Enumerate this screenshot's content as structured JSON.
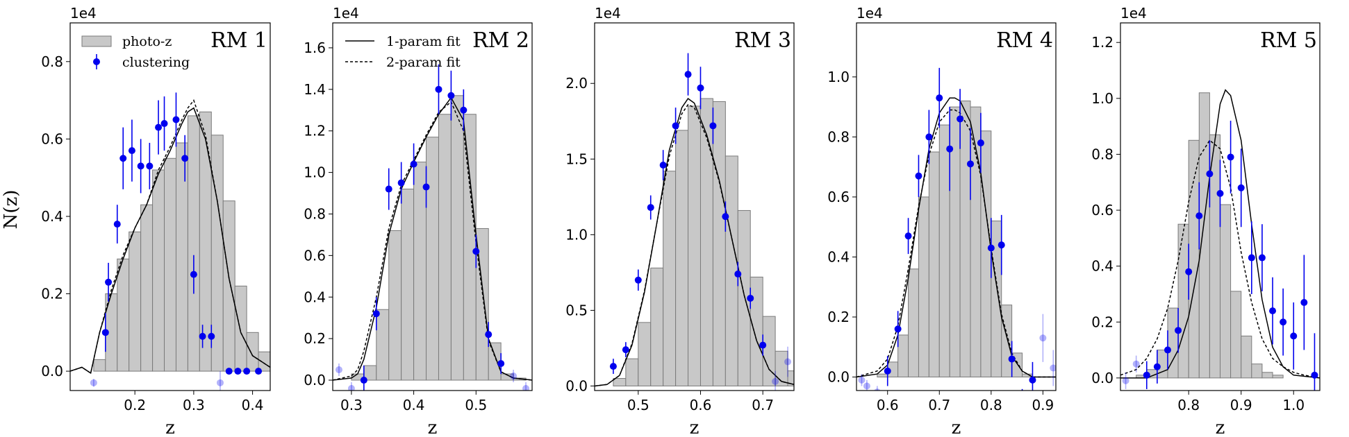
{
  "figure": {
    "ylabel": "N(z)",
    "offset_text": "1e4",
    "legend_left": {
      "photoz": "photo-z",
      "clustering": "clustering"
    },
    "legend_right": {
      "fit1": "1-param fit",
      "fit2": "2-param fit"
    }
  },
  "colors": {
    "bar_fill": "#c8c8c8",
    "bar_edge": "#7a7a7a",
    "points": "#0000ee",
    "line": "#000000"
  },
  "chart_data": [
    {
      "type": "bar",
      "title": "RM 1",
      "xlabel": "z",
      "xlim": [
        0.09,
        0.43
      ],
      "ylim": [
        -0.05,
        0.9
      ],
      "xticks": [
        "0.2",
        "0.3",
        "0.4"
      ],
      "yticks": [
        "0.0",
        "0.2",
        "0.4",
        "0.6",
        "0.8"
      ],
      "bins": {
        "start": 0.13,
        "width": 0.02,
        "heights": [
          0.03,
          0.2,
          0.29,
          0.36,
          0.43,
          0.52,
          0.55,
          0.59,
          0.66,
          0.67,
          0.61,
          0.44,
          0.22,
          0.1,
          0.05,
          0.02
        ]
      },
      "clustering": {
        "x": [
          0.13,
          0.15,
          0.155,
          0.17,
          0.18,
          0.195,
          0.21,
          0.225,
          0.24,
          0.25,
          0.27,
          0.285,
          0.3,
          0.315,
          0.33,
          0.345,
          0.36,
          0.375,
          0.39,
          0.41
        ],
        "y": [
          -0.03,
          0.1,
          0.23,
          0.38,
          0.55,
          0.57,
          0.53,
          0.53,
          0.63,
          0.64,
          0.65,
          0.55,
          0.25,
          0.09,
          0.09,
          -0.03,
          0.0,
          0.0,
          0.0,
          0.0
        ],
        "err": [
          0.01,
          0.05,
          0.05,
          0.05,
          0.08,
          0.08,
          0.07,
          0.06,
          0.07,
          0.07,
          0.07,
          0.06,
          0.05,
          0.03,
          0.03,
          0.03,
          0,
          0,
          0,
          0
        ],
        "faded": [
          true,
          false,
          false,
          false,
          false,
          false,
          false,
          false,
          false,
          false,
          false,
          false,
          false,
          false,
          false,
          true,
          false,
          false,
          false,
          false
        ]
      },
      "fit_1param": {
        "x": [
          0.09,
          0.11,
          0.125,
          0.14,
          0.16,
          0.18,
          0.2,
          0.22,
          0.24,
          0.26,
          0.28,
          0.29,
          0.3,
          0.32,
          0.34,
          0.36,
          0.38,
          0.4,
          0.43
        ],
        "y": [
          0.0,
          0.01,
          -0.005,
          0.1,
          0.2,
          0.29,
          0.37,
          0.43,
          0.51,
          0.57,
          0.64,
          0.67,
          0.68,
          0.6,
          0.44,
          0.24,
          0.1,
          0.04,
          0.01
        ]
      },
      "fit_2param": {
        "x": [
          0.09,
          0.11,
          0.125,
          0.14,
          0.16,
          0.18,
          0.2,
          0.22,
          0.24,
          0.26,
          0.28,
          0.29,
          0.3,
          0.32,
          0.34,
          0.36,
          0.38,
          0.4,
          0.43
        ],
        "y": [
          0.0,
          0.01,
          -0.005,
          0.1,
          0.21,
          0.3,
          0.37,
          0.43,
          0.52,
          0.58,
          0.65,
          0.68,
          0.7,
          0.61,
          0.44,
          0.24,
          0.1,
          0.04,
          0.01
        ]
      }
    },
    {
      "type": "bar",
      "title": "RM 2",
      "xlabel": "z",
      "xlim": [
        0.27,
        0.59
      ],
      "ylim": [
        -0.05,
        1.72
      ],
      "xticks": [
        "0.3",
        "0.4",
        "0.5"
      ],
      "yticks": [
        "0.0",
        "0.2",
        "0.4",
        "0.6",
        "0.8",
        "1.0",
        "1.2",
        "1.4",
        "1.6"
      ],
      "bins": {
        "start": 0.3,
        "width": 0.02,
        "heights": [
          0.03,
          0.07,
          0.34,
          0.72,
          0.92,
          1.05,
          1.17,
          1.28,
          1.37,
          1.28,
          0.73,
          0.18,
          0.03,
          0.01
        ]
      },
      "clustering": {
        "x": [
          0.28,
          0.3,
          0.32,
          0.34,
          0.36,
          0.38,
          0.4,
          0.42,
          0.44,
          0.46,
          0.48,
          0.5,
          0.52,
          0.54,
          0.56,
          0.58
        ],
        "y": [
          0.05,
          -0.04,
          0.0,
          0.32,
          0.92,
          0.95,
          1.04,
          0.93,
          1.4,
          1.37,
          1.3,
          0.62,
          0.22,
          0.08,
          0.02,
          -0.04
        ],
        "err": [
          0.03,
          0.03,
          0.07,
          0.08,
          0.1,
          0.1,
          0.1,
          0.1,
          0.12,
          0.12,
          0.1,
          0.08,
          0.06,
          0.05,
          0.03,
          0.03
        ],
        "faded": [
          true,
          true,
          false,
          false,
          false,
          false,
          false,
          false,
          false,
          false,
          false,
          false,
          false,
          false,
          true,
          true
        ]
      },
      "fit_1param": {
        "x": [
          0.27,
          0.3,
          0.31,
          0.32,
          0.34,
          0.36,
          0.38,
          0.4,
          0.42,
          0.44,
          0.46,
          0.48,
          0.5,
          0.52,
          0.54,
          0.56,
          0.59
        ],
        "y": [
          0.0,
          0.01,
          0.03,
          0.1,
          0.35,
          0.7,
          0.92,
          1.05,
          1.17,
          1.28,
          1.36,
          1.25,
          0.7,
          0.2,
          0.04,
          0.01,
          0.0
        ]
      },
      "fit_2param": {
        "x": [
          0.27,
          0.3,
          0.31,
          0.32,
          0.34,
          0.36,
          0.38,
          0.4,
          0.42,
          0.44,
          0.46,
          0.48,
          0.5,
          0.52,
          0.54,
          0.56,
          0.59
        ],
        "y": [
          0.0,
          0.02,
          0.05,
          0.14,
          0.4,
          0.73,
          0.94,
          1.06,
          1.18,
          1.29,
          1.34,
          1.2,
          0.66,
          0.19,
          0.04,
          0.01,
          0.0
        ]
      }
    },
    {
      "type": "bar",
      "title": "RM 3",
      "xlabel": "z",
      "xlim": [
        0.43,
        0.75
      ],
      "ylim": [
        -0.03,
        2.4
      ],
      "xticks": [
        "0.5",
        "0.6",
        "0.7"
      ],
      "yticks": [
        "0.0",
        "0.5",
        "1.0",
        "1.5",
        "2.0"
      ],
      "bins": {
        "start": 0.44,
        "width": 0.02,
        "heights": [
          0.0,
          0.05,
          0.18,
          0.42,
          0.78,
          1.42,
          1.69,
          1.85,
          1.9,
          1.88,
          1.52,
          1.16,
          0.72,
          0.46,
          0.23,
          0.1,
          0.04
        ]
      },
      "clustering": {
        "x": [
          0.46,
          0.48,
          0.5,
          0.52,
          0.54,
          0.56,
          0.58,
          0.6,
          0.62,
          0.64,
          0.66,
          0.68,
          0.7,
          0.72,
          0.74
        ],
        "y": [
          0.13,
          0.24,
          0.7,
          1.18,
          1.46,
          1.72,
          2.06,
          1.97,
          1.72,
          1.12,
          0.74,
          0.58,
          0.27,
          0.03,
          0.16
        ],
        "err": [
          0.05,
          0.05,
          0.07,
          0.08,
          0.1,
          0.12,
          0.14,
          0.14,
          0.12,
          0.1,
          0.08,
          0.07,
          0.07,
          0.07,
          0.1
        ],
        "faded": [
          false,
          false,
          false,
          false,
          false,
          false,
          false,
          false,
          false,
          false,
          false,
          false,
          false,
          true,
          true
        ]
      },
      "fit_1param": {
        "x": [
          0.43,
          0.45,
          0.47,
          0.49,
          0.51,
          0.53,
          0.55,
          0.57,
          0.58,
          0.59,
          0.61,
          0.63,
          0.65,
          0.67,
          0.69,
          0.71,
          0.73,
          0.75
        ],
        "y": [
          0.0,
          0.01,
          0.07,
          0.27,
          0.62,
          1.08,
          1.56,
          1.84,
          1.9,
          1.87,
          1.66,
          1.36,
          0.98,
          0.6,
          0.3,
          0.11,
          0.03,
          0.01
        ]
      },
      "fit_2param": {
        "x": [
          0.43,
          0.45,
          0.47,
          0.49,
          0.51,
          0.53,
          0.55,
          0.57,
          0.58,
          0.59,
          0.61,
          0.63,
          0.65,
          0.67,
          0.69,
          0.71,
          0.73,
          0.75
        ],
        "y": [
          0.0,
          0.01,
          0.07,
          0.28,
          0.63,
          1.08,
          1.52,
          1.8,
          1.86,
          1.84,
          1.64,
          1.35,
          0.98,
          0.6,
          0.3,
          0.11,
          0.03,
          0.01
        ]
      }
    },
    {
      "type": "bar",
      "title": "RM 4",
      "xlabel": "z",
      "xlim": [
        0.54,
        0.925
      ],
      "ylim": [
        -0.045,
        1.18
      ],
      "xticks": [
        "0.6",
        "0.7",
        "0.8",
        "0.9"
      ],
      "yticks": [
        "0.0",
        "0.2",
        "0.4",
        "0.6",
        "0.8",
        "1.0"
      ],
      "bins": {
        "start": 0.58,
        "width": 0.02,
        "heights": [
          0.01,
          0.05,
          0.14,
          0.36,
          0.6,
          0.75,
          0.84,
          0.9,
          0.92,
          0.9,
          0.82,
          0.52,
          0.24,
          0.08,
          0.01
        ]
      },
      "clustering": {
        "x": [
          0.55,
          0.56,
          0.58,
          0.6,
          0.62,
          0.64,
          0.66,
          0.68,
          0.7,
          0.72,
          0.74,
          0.76,
          0.78,
          0.8,
          0.82,
          0.84,
          0.86,
          0.88,
          0.9,
          0.92
        ],
        "y": [
          -0.01,
          -0.03,
          -0.05,
          0.02,
          0.16,
          0.47,
          0.67,
          0.8,
          0.93,
          0.76,
          0.86,
          0.71,
          0.78,
          0.43,
          0.44,
          0.06,
          -0.08,
          -0.01,
          0.13,
          0.03
        ],
        "err": [
          0.02,
          0.02,
          0.02,
          0.05,
          0.06,
          0.06,
          0.07,
          0.09,
          0.1,
          0.14,
          0.1,
          0.12,
          0.1,
          0.1,
          0.1,
          0.06,
          0.04,
          0.06,
          0.08,
          0.06
        ],
        "faded": [
          true,
          true,
          true,
          false,
          false,
          false,
          false,
          false,
          false,
          false,
          false,
          false,
          false,
          false,
          false,
          false,
          false,
          false,
          true,
          true
        ]
      },
      "fit_1param": {
        "x": [
          0.54,
          0.58,
          0.6,
          0.62,
          0.64,
          0.66,
          0.68,
          0.7,
          0.72,
          0.73,
          0.74,
          0.76,
          0.78,
          0.8,
          0.82,
          0.84,
          0.86,
          0.88,
          0.925
        ],
        "y": [
          0.0,
          0.01,
          0.04,
          0.14,
          0.33,
          0.56,
          0.76,
          0.88,
          0.93,
          0.93,
          0.92,
          0.85,
          0.68,
          0.42,
          0.2,
          0.07,
          0.02,
          0.0,
          0.0
        ]
      },
      "fit_2param": {
        "x": [
          0.54,
          0.58,
          0.6,
          0.62,
          0.64,
          0.66,
          0.68,
          0.7,
          0.72,
          0.73,
          0.74,
          0.76,
          0.78,
          0.8,
          0.82,
          0.84,
          0.86,
          0.88,
          0.925
        ],
        "y": [
          0.0,
          0.02,
          0.06,
          0.17,
          0.36,
          0.57,
          0.74,
          0.85,
          0.89,
          0.89,
          0.88,
          0.82,
          0.67,
          0.43,
          0.21,
          0.08,
          0.02,
          0.0,
          0.0
        ]
      }
    },
    {
      "type": "bar",
      "title": "RM 5",
      "xlabel": "z",
      "xlim": [
        0.67,
        1.05
      ],
      "ylim": [
        -0.045,
        1.27
      ],
      "xticks": [
        "0.8",
        "0.9",
        "1.0"
      ],
      "yticks": [
        "0.0",
        "0.2",
        "0.4",
        "0.6",
        "0.8",
        "1.0",
        "1.2"
      ],
      "bins": {
        "start": 0.7,
        "width": 0.02,
        "heights": [
          0.01,
          0.03,
          0.1,
          0.25,
          0.55,
          0.85,
          1.02,
          0.87,
          0.62,
          0.31,
          0.15,
          0.05,
          0.02,
          0.01
        ]
      },
      "clustering": {
        "x": [
          0.68,
          0.7,
          0.72,
          0.74,
          0.76,
          0.78,
          0.8,
          0.82,
          0.84,
          0.86,
          0.88,
          0.9,
          0.92,
          0.94,
          0.96,
          0.98,
          1.0,
          1.02,
          1.04
        ],
        "y": [
          -0.01,
          0.05,
          0.01,
          0.04,
          0.1,
          0.17,
          0.38,
          0.58,
          0.73,
          0.66,
          0.79,
          0.68,
          0.43,
          0.43,
          0.24,
          0.2,
          0.15,
          0.27,
          0.01
        ],
        "err": [
          0.03,
          0.03,
          0.05,
          0.06,
          0.07,
          0.08,
          0.1,
          0.12,
          0.12,
          0.12,
          0.13,
          0.14,
          0.13,
          0.12,
          0.12,
          0.12,
          0.12,
          0.17,
          0.15
        ],
        "faded": [
          true,
          true,
          false,
          false,
          false,
          false,
          false,
          false,
          false,
          false,
          false,
          false,
          false,
          false,
          false,
          false,
          false,
          false,
          false
        ]
      },
      "fit_1param": {
        "x": [
          0.67,
          0.72,
          0.76,
          0.78,
          0.8,
          0.82,
          0.84,
          0.86,
          0.87,
          0.88,
          0.9,
          0.92,
          0.94,
          0.96,
          0.98,
          1.0,
          1.05
        ],
        "y": [
          0.0,
          0.0,
          0.03,
          0.1,
          0.22,
          0.42,
          0.72,
          0.98,
          1.03,
          1.01,
          0.85,
          0.55,
          0.28,
          0.11,
          0.04,
          0.01,
          0.0
        ]
      },
      "fit_2param": {
        "x": [
          0.67,
          0.7,
          0.72,
          0.74,
          0.76,
          0.78,
          0.8,
          0.82,
          0.84,
          0.86,
          0.88,
          0.9,
          0.92,
          0.94,
          0.96,
          0.98,
          1.0,
          1.02,
          1.05
        ],
        "y": [
          0.01,
          0.03,
          0.07,
          0.14,
          0.25,
          0.42,
          0.63,
          0.79,
          0.85,
          0.82,
          0.68,
          0.45,
          0.27,
          0.14,
          0.07,
          0.04,
          0.02,
          0.01,
          0.0
        ]
      }
    }
  ]
}
